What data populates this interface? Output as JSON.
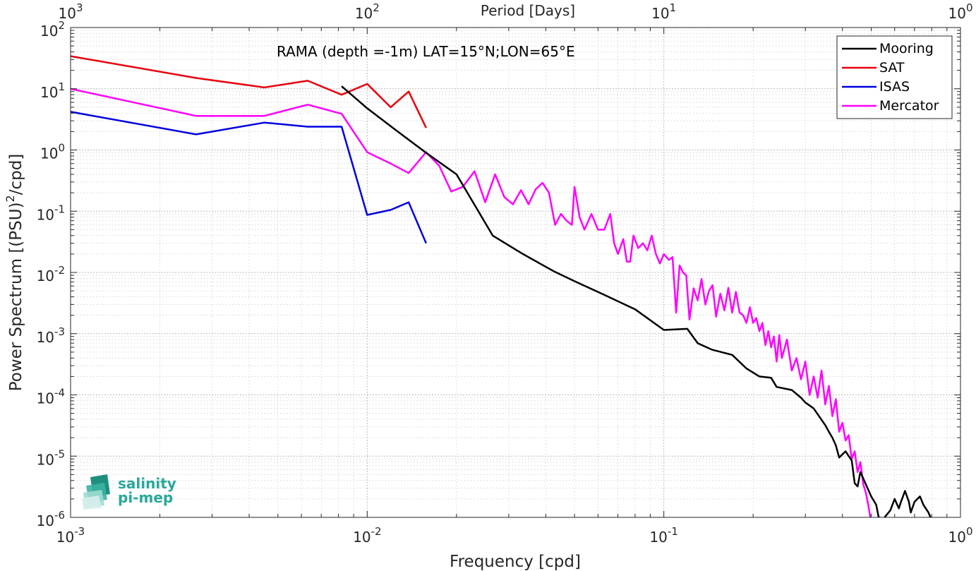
{
  "chart_data": {
    "type": "line",
    "annotation": "RAMA (depth =-1m) LAT=15°N;LON=65°E",
    "xlabel": "Frequency [cpd]",
    "ylabel_parts": [
      "Power Spectrum [(PSU)",
      "2",
      "/cpd]"
    ],
    "top_xlabel": "Period [Days]",
    "xscale": "log",
    "yscale": "log",
    "xlim": [
      0.001,
      1
    ],
    "ylim": [
      1e-06,
      100
    ],
    "grid": true,
    "legend_position": "top-right",
    "x_ticks": [
      {
        "value": 0.001,
        "base": "10",
        "exp": "-3"
      },
      {
        "value": 0.01,
        "base": "10",
        "exp": "-2"
      },
      {
        "value": 0.1,
        "base": "10",
        "exp": "-1"
      },
      {
        "value": 1,
        "base": "10",
        "exp": "0"
      }
    ],
    "top_ticks": [
      {
        "value": 0.001,
        "base": "10",
        "exp": "3"
      },
      {
        "value": 0.01,
        "base": "10",
        "exp": "2"
      },
      {
        "value": 0.1,
        "base": "10",
        "exp": "1"
      },
      {
        "value": 1,
        "base": "10",
        "exp": "0"
      }
    ],
    "y_ticks": [
      {
        "value": 100,
        "base": "10",
        "exp": "2"
      },
      {
        "value": 10,
        "base": "10",
        "exp": "1"
      },
      {
        "value": 1,
        "base": "10",
        "exp": "0"
      },
      {
        "value": 0.1,
        "base": "10",
        "exp": "-1"
      },
      {
        "value": 0.01,
        "base": "10",
        "exp": "-2"
      },
      {
        "value": 0.001,
        "base": "10",
        "exp": "-3"
      },
      {
        "value": 0.0001,
        "base": "10",
        "exp": "-4"
      },
      {
        "value": 1e-05,
        "base": "10",
        "exp": "-5"
      },
      {
        "value": 1e-06,
        "base": "10",
        "exp": "-6"
      }
    ],
    "series": [
      {
        "name": "Mooring",
        "color": "#000000",
        "points": [
          [
            0.0082,
            11
          ],
          [
            0.01,
            4.8
          ],
          [
            0.0125,
            2.1
          ],
          [
            0.0158,
            0.9
          ],
          [
            0.02,
            0.4
          ],
          [
            0.0265,
            0.04
          ],
          [
            0.0335,
            0.02
          ],
          [
            0.0425,
            0.0105
          ],
          [
            0.05,
            0.0072
          ],
          [
            0.063,
            0.0043
          ],
          [
            0.08,
            0.0025
          ],
          [
            0.1,
            0.00115
          ],
          [
            0.12,
            0.0012
          ],
          [
            0.13,
            0.0007
          ],
          [
            0.145,
            0.00055
          ],
          [
            0.17,
            0.00045
          ],
          [
            0.19,
            0.00027
          ],
          [
            0.21,
            0.0002
          ],
          [
            0.23,
            0.00019
          ],
          [
            0.24,
            0.000135
          ],
          [
            0.27,
            0.00012
          ],
          [
            0.29,
            9e-05
          ],
          [
            0.3,
            7.5e-05
          ],
          [
            0.32,
            6e-05
          ],
          [
            0.35,
            3.2e-05
          ],
          [
            0.36,
            2.5e-05
          ],
          [
            0.37,
            2e-05
          ],
          [
            0.38,
            1.5e-05
          ],
          [
            0.39,
            9.5e-06
          ],
          [
            0.41,
            1.2e-05
          ],
          [
            0.43,
            8.5e-06
          ],
          [
            0.44,
            3.6e-06
          ],
          [
            0.45,
            3.2e-06
          ],
          [
            0.46,
            5.5e-06
          ],
          [
            0.5,
            2.2e-06
          ],
          [
            0.52,
            1.6e-06
          ],
          [
            0.53,
            1e-06
          ],
          [
            0.55,
            9.5e-07
          ],
          [
            0.58,
            1.3e-06
          ],
          [
            0.6,
            2e-06
          ],
          [
            0.62,
            1.4e-06
          ],
          [
            0.63,
            1.8e-06
          ],
          [
            0.65,
            2.7e-06
          ],
          [
            0.67,
            1.8e-06
          ],
          [
            0.68,
            1.2e-06
          ],
          [
            0.7,
            1.8e-06
          ],
          [
            0.73,
            2.2e-06
          ],
          [
            0.75,
            1.6e-06
          ],
          [
            0.78,
            1.2e-06
          ],
          [
            0.8,
            9e-07
          ]
        ]
      },
      {
        "name": "SAT",
        "color": "#e8000b",
        "points": [
          [
            0.001,
            34
          ],
          [
            0.00265,
            15
          ],
          [
            0.0045,
            10.5
          ],
          [
            0.0063,
            13.5
          ],
          [
            0.0082,
            8
          ],
          [
            0.01,
            12
          ],
          [
            0.012,
            5
          ],
          [
            0.0138,
            9
          ],
          [
            0.0158,
            2.3
          ]
        ]
      },
      {
        "name": "ISAS",
        "color": "#0000e0",
        "points": [
          [
            0.001,
            4.2
          ],
          [
            0.00265,
            1.8
          ],
          [
            0.0045,
            2.8
          ],
          [
            0.0063,
            2.4
          ],
          [
            0.0082,
            2.4
          ],
          [
            0.01,
            0.087
          ],
          [
            0.012,
            0.105
          ],
          [
            0.0138,
            0.14
          ],
          [
            0.0158,
            0.03
          ]
        ]
      },
      {
        "name": "Mercator",
        "color": "#ff00ff",
        "points": [
          [
            0.001,
            10
          ],
          [
            0.00265,
            3.6
          ],
          [
            0.0045,
            3.6
          ],
          [
            0.0063,
            5.5
          ],
          [
            0.0082,
            3.9
          ],
          [
            0.01,
            0.92
          ],
          [
            0.012,
            0.6
          ],
          [
            0.0138,
            0.42
          ],
          [
            0.0158,
            0.92
          ],
          [
            0.0175,
            0.55
          ],
          [
            0.0192,
            0.21
          ],
          [
            0.021,
            0.25
          ],
          [
            0.023,
            0.45
          ],
          [
            0.025,
            0.14
          ],
          [
            0.027,
            0.4
          ],
          [
            0.029,
            0.17
          ],
          [
            0.031,
            0.13
          ],
          [
            0.033,
            0.22
          ],
          [
            0.035,
            0.13
          ],
          [
            0.037,
            0.23
          ],
          [
            0.039,
            0.29
          ],
          [
            0.041,
            0.2
          ],
          [
            0.043,
            0.06
          ],
          [
            0.045,
            0.09
          ],
          [
            0.047,
            0.07
          ],
          [
            0.049,
            0.06
          ],
          [
            0.05,
            0.25
          ],
          [
            0.052,
            0.08
          ],
          [
            0.054,
            0.05
          ],
          [
            0.057,
            0.09
          ],
          [
            0.06,
            0.05
          ],
          [
            0.063,
            0.05
          ],
          [
            0.066,
            0.09
          ],
          [
            0.068,
            0.03
          ],
          [
            0.07,
            0.02
          ],
          [
            0.073,
            0.035
          ],
          [
            0.075,
            0.015
          ],
          [
            0.077,
            0.015
          ],
          [
            0.079,
            0.04
          ],
          [
            0.082,
            0.025
          ],
          [
            0.085,
            0.03
          ],
          [
            0.088,
            0.023
          ],
          [
            0.091,
            0.04
          ],
          [
            0.094,
            0.02
          ],
          [
            0.097,
            0.014
          ],
          [
            0.1,
            0.02
          ],
          [
            0.104,
            0.016
          ],
          [
            0.107,
            0.0178
          ],
          [
            0.11,
            0.0022
          ],
          [
            0.113,
            0.013
          ],
          [
            0.116,
            0.01
          ],
          [
            0.119,
            0.009
          ],
          [
            0.122,
            0.0017
          ],
          [
            0.126,
            0.0055
          ],
          [
            0.13,
            0.0035
          ],
          [
            0.134,
            0.0078
          ],
          [
            0.138,
            0.003
          ],
          [
            0.142,
            0.005
          ],
          [
            0.146,
            0.0062
          ],
          [
            0.15,
            0.0019
          ],
          [
            0.155,
            0.0045
          ],
          [
            0.16,
            0.0024
          ],
          [
            0.165,
            0.0056
          ],
          [
            0.17,
            0.0022
          ],
          [
            0.175,
            0.0048
          ],
          [
            0.18,
            0.0022
          ],
          [
            0.185,
            0.002
          ],
          [
            0.19,
            0.0015
          ],
          [
            0.195,
            0.0027
          ],
          [
            0.2,
            0.0015
          ],
          [
            0.205,
            0.0018
          ],
          [
            0.21,
            0.0011
          ],
          [
            0.215,
            0.0015
          ],
          [
            0.22,
            0.00065
          ],
          [
            0.225,
            0.0011
          ],
          [
            0.23,
            0.0006
          ],
          [
            0.235,
            0.0009
          ],
          [
            0.24,
            0.00035
          ],
          [
            0.245,
            0.00095
          ],
          [
            0.25,
            0.0004
          ],
          [
            0.26,
            0.0008
          ],
          [
            0.27,
            0.00025
          ],
          [
            0.28,
            0.0004
          ],
          [
            0.29,
            0.00018
          ],
          [
            0.3,
            0.00035
          ],
          [
            0.31,
            0.0001
          ],
          [
            0.32,
            0.0002
          ],
          [
            0.33,
            9e-05
          ],
          [
            0.34,
            0.00025
          ],
          [
            0.35,
            7e-05
          ],
          [
            0.36,
            0.00014
          ],
          [
            0.37,
            4.5e-05
          ],
          [
            0.38,
            8.5e-05
          ],
          [
            0.39,
            2.5e-05
          ],
          [
            0.4,
            3.5e-05
          ],
          [
            0.41,
            1.8e-05
          ],
          [
            0.42,
            2.2e-05
          ],
          [
            0.43,
            9e-06
          ],
          [
            0.44,
            1.2e-05
          ],
          [
            0.45,
            5.5e-06
          ],
          [
            0.46,
            8e-06
          ],
          [
            0.47,
            3.5e-06
          ],
          [
            0.48,
            2.5e-06
          ],
          [
            0.49,
            1.5e-06
          ],
          [
            0.5,
            8e-07
          ]
        ]
      }
    ]
  },
  "logo": {
    "line1": "salinity",
    "line2": "pi-mep",
    "color": "#29a89a"
  }
}
